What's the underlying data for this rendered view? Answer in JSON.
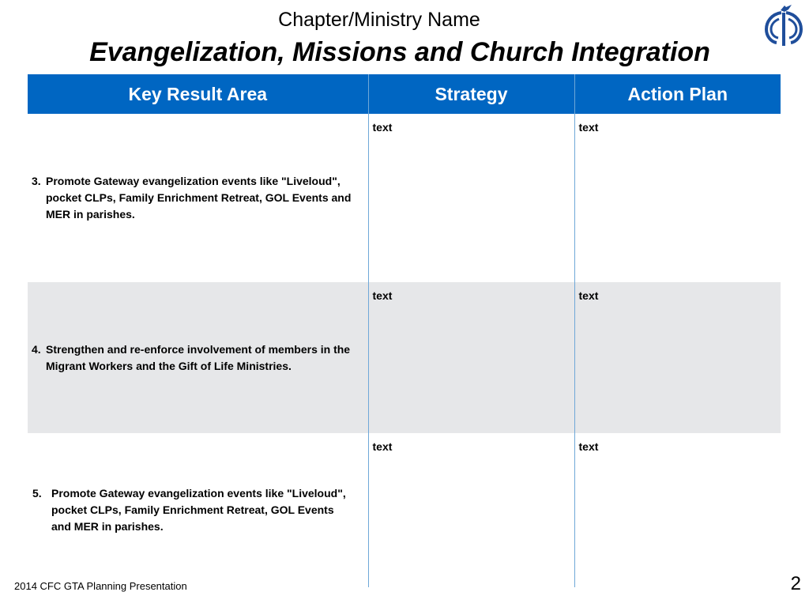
{
  "header": {
    "subtitle": "Chapter/Ministry Name",
    "title": "Evangelization, Missions and Church Integration"
  },
  "logo": {
    "icon": "cfc-logo-icon",
    "color": "#1f4e9b"
  },
  "table": {
    "header_color": "#0066c2",
    "shade_color": "#e6e7e9",
    "columns": [
      "Key Result Area",
      "Strategy",
      "Action Plan"
    ],
    "rows": [
      {
        "number": "3.",
        "kra": "Promote Gateway evangelization events like \"Liveloud\", pocket CLPs, Family Enrichment Retreat, GOL Events and MER in parishes.",
        "strategy": "text",
        "action_plan": "text"
      },
      {
        "number": "4.",
        "kra": "Strengthen and re-enforce involvement of members in the Migrant Workers and the Gift of Life Ministries.",
        "strategy": "text",
        "action_plan": "text"
      },
      {
        "number": "5.",
        "kra": "Promote Gateway evangelization events like \"Liveloud\", pocket CLPs, Family Enrichment Retreat, GOL Events and MER in parishes.",
        "strategy": "text",
        "action_plan": "text"
      }
    ]
  },
  "footer": {
    "text": "2014 CFC GTA Planning Presentation",
    "page_number": "2"
  }
}
